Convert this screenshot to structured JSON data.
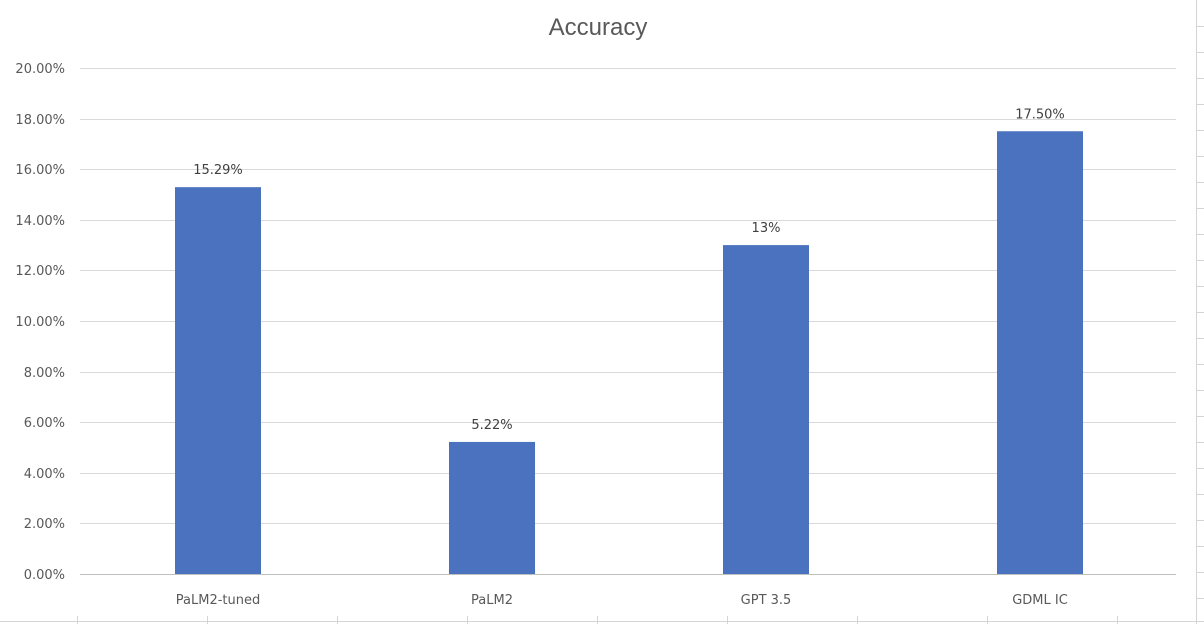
{
  "chart_data": {
    "type": "bar",
    "title": "Accuracy",
    "xlabel": "",
    "ylabel": "",
    "categories": [
      "PaLM2-tuned",
      "PaLM2",
      "GPT 3.5",
      "GDML IC"
    ],
    "values": [
      15.29,
      5.22,
      13.0,
      17.5
    ],
    "data_labels": [
      "15.29%",
      "5.22%",
      "13%",
      "17.50%"
    ],
    "ylim": [
      0,
      20
    ],
    "y_ticks": [
      0,
      2,
      4,
      6,
      8,
      10,
      12,
      14,
      16,
      18,
      20
    ],
    "y_tick_labels": [
      "0.00%",
      "2.00%",
      "4.00%",
      "6.00%",
      "8.00%",
      "10.00%",
      "12.00%",
      "14.00%",
      "16.00%",
      "18.00%",
      "20.00%"
    ],
    "grid": true,
    "legend": "none",
    "bar_color": "#4a72be",
    "grid_color": "#d9d9d9",
    "axis_color": "#bfbfbf"
  }
}
